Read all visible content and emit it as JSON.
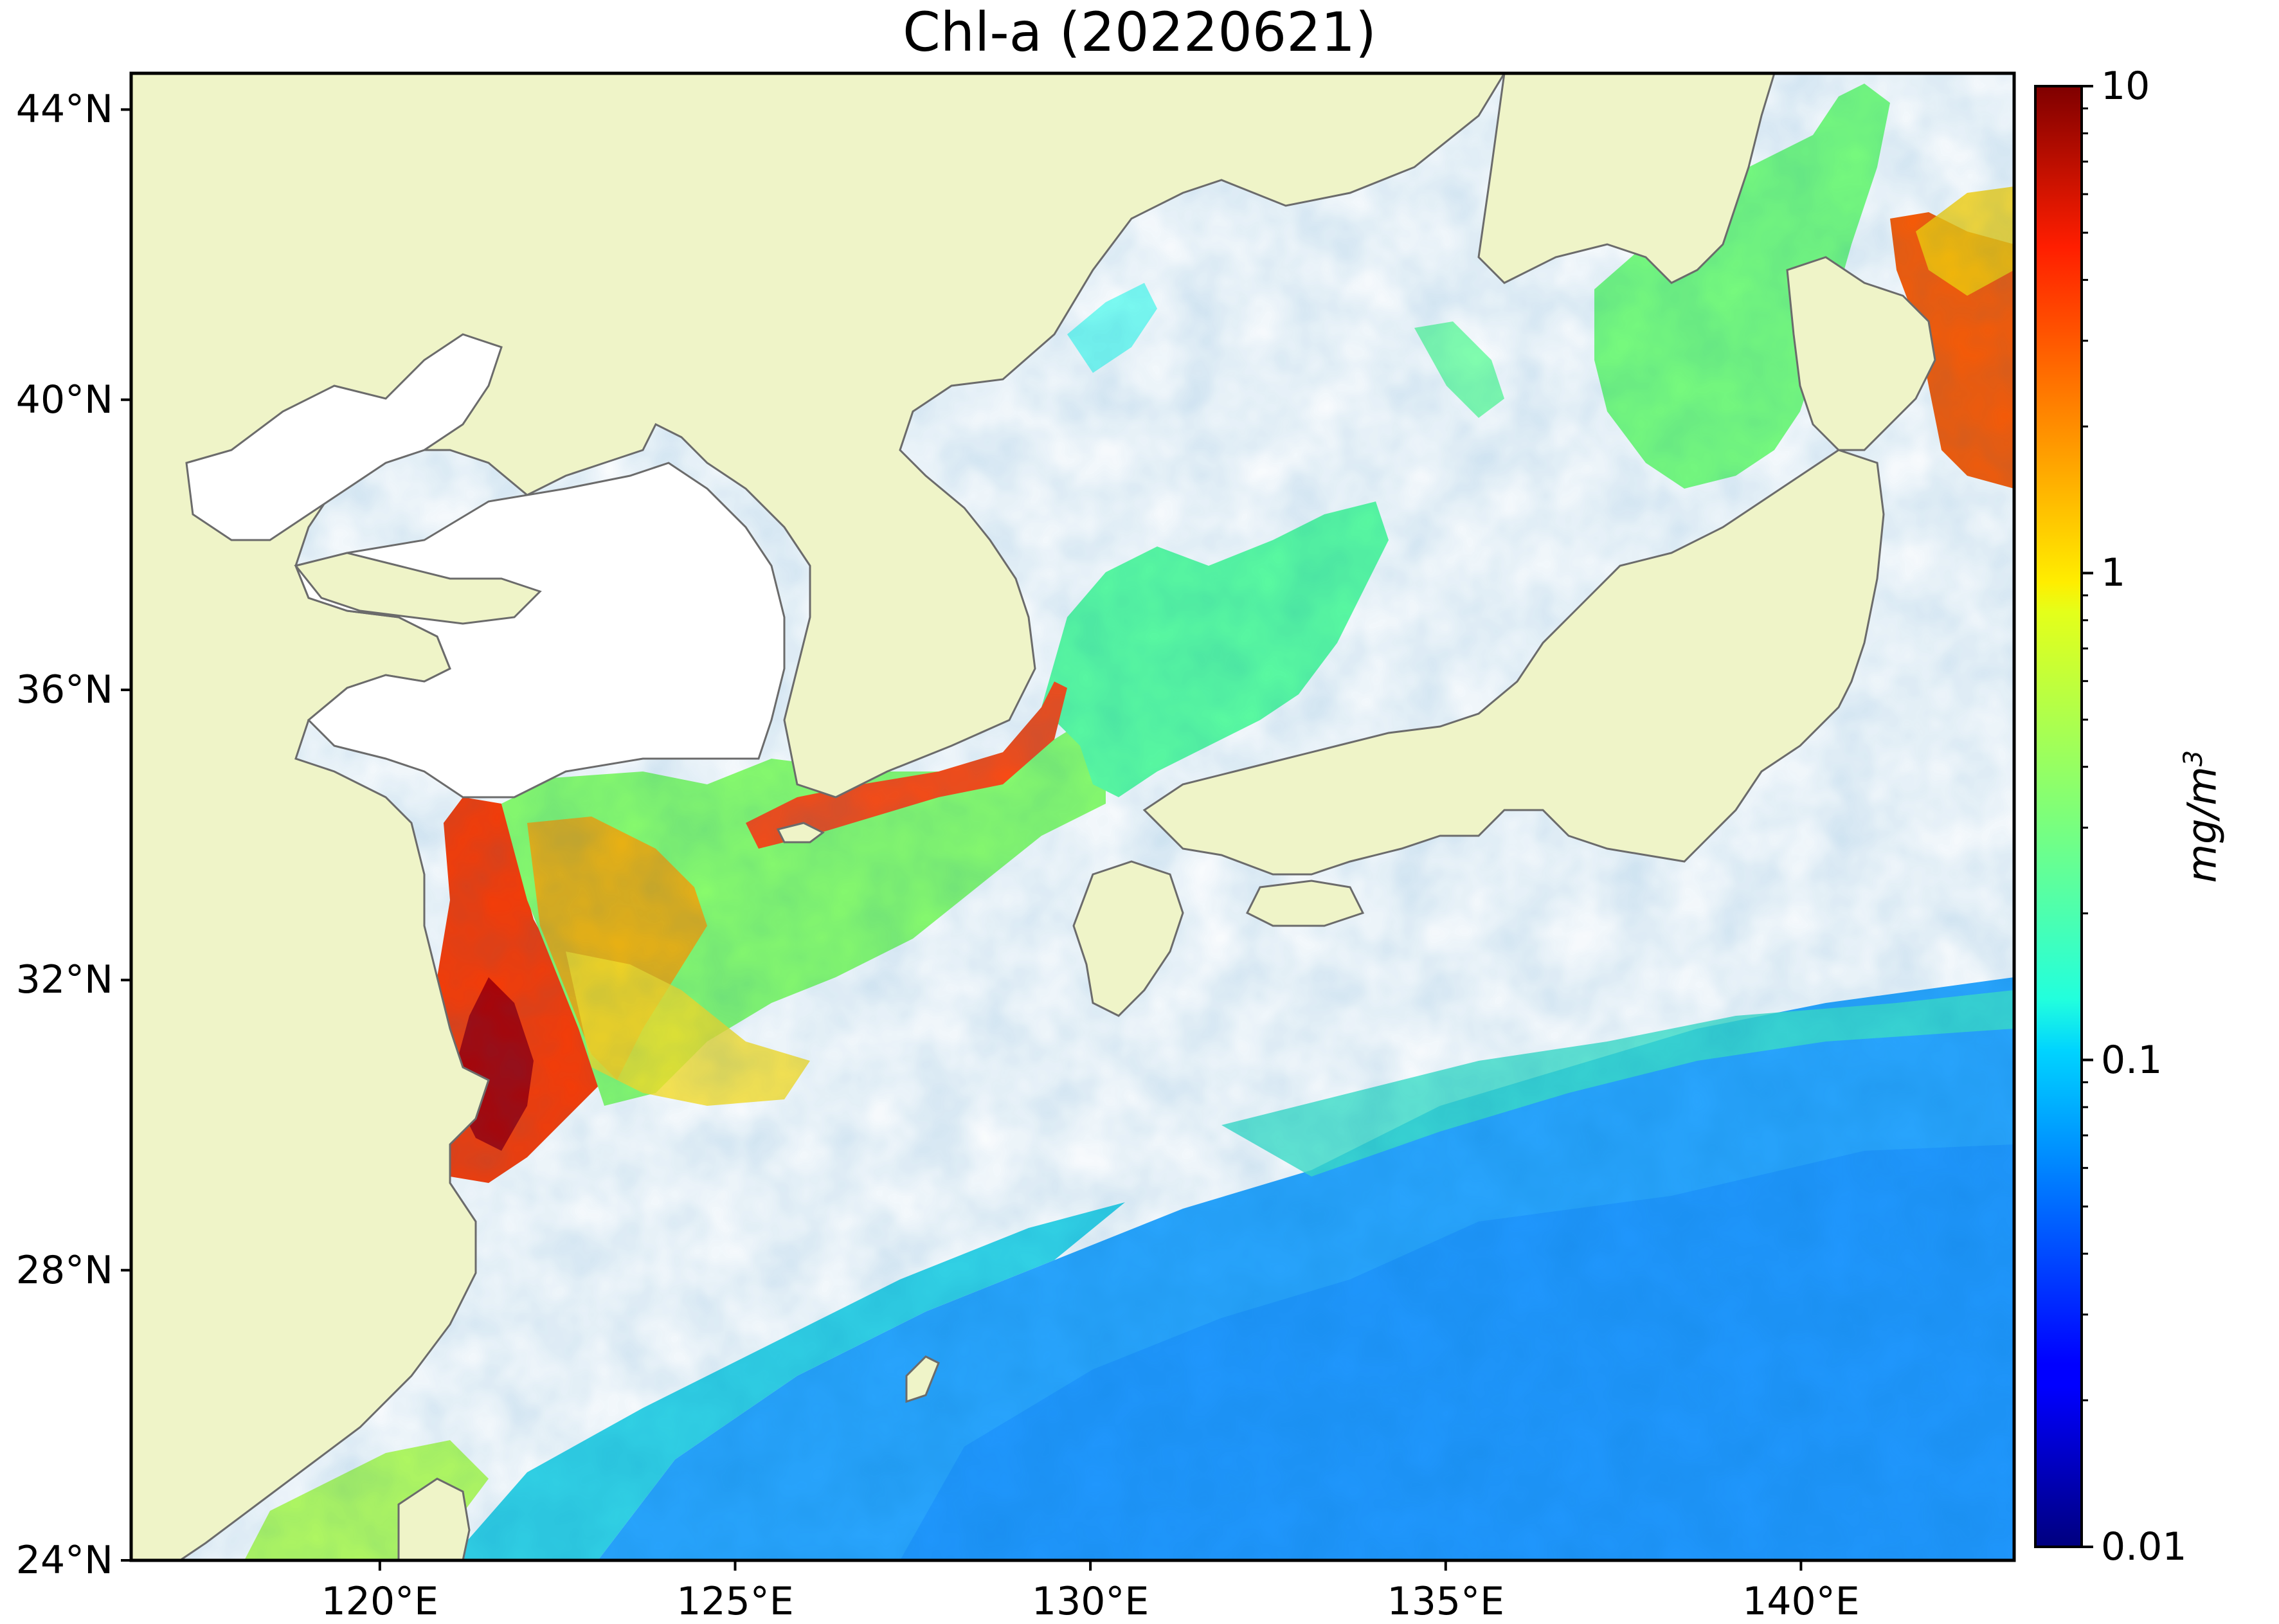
{
  "title": "Chl-a (20220621)",
  "map": {
    "lon_range": [
      116.5,
      143.0
    ],
    "lat_range": [
      24.0,
      44.5
    ],
    "land_color": "#eff4c8",
    "coast_color": "#6b6b6b",
    "no_data_color": "#ffffff",
    "x_ticks": [
      {
        "value": 120,
        "label": "120°E"
      },
      {
        "value": 125,
        "label": "125°E"
      },
      {
        "value": 130,
        "label": "130°E"
      },
      {
        "value": 135,
        "label": "135°E"
      },
      {
        "value": 140,
        "label": "140°E"
      }
    ],
    "y_ticks": [
      {
        "value": 24,
        "label": "24°N"
      },
      {
        "value": 28,
        "label": "28°N"
      },
      {
        "value": 32,
        "label": "32°N"
      },
      {
        "value": 36,
        "label": "36°N"
      },
      {
        "value": 40,
        "label": "40°N"
      },
      {
        "value": 44,
        "label": "44°N"
      }
    ]
  },
  "colorbar": {
    "scale": "log",
    "range": [
      0.01,
      10
    ],
    "colormap": "jet",
    "unit": "mg/m",
    "unit_superscript": "3",
    "ticks": [
      {
        "value": 0.01,
        "label": "0.01"
      },
      {
        "value": 0.1,
        "label": "0.1"
      },
      {
        "value": 1,
        "label": "1"
      },
      {
        "value": 10,
        "label": "10"
      }
    ]
  }
}
